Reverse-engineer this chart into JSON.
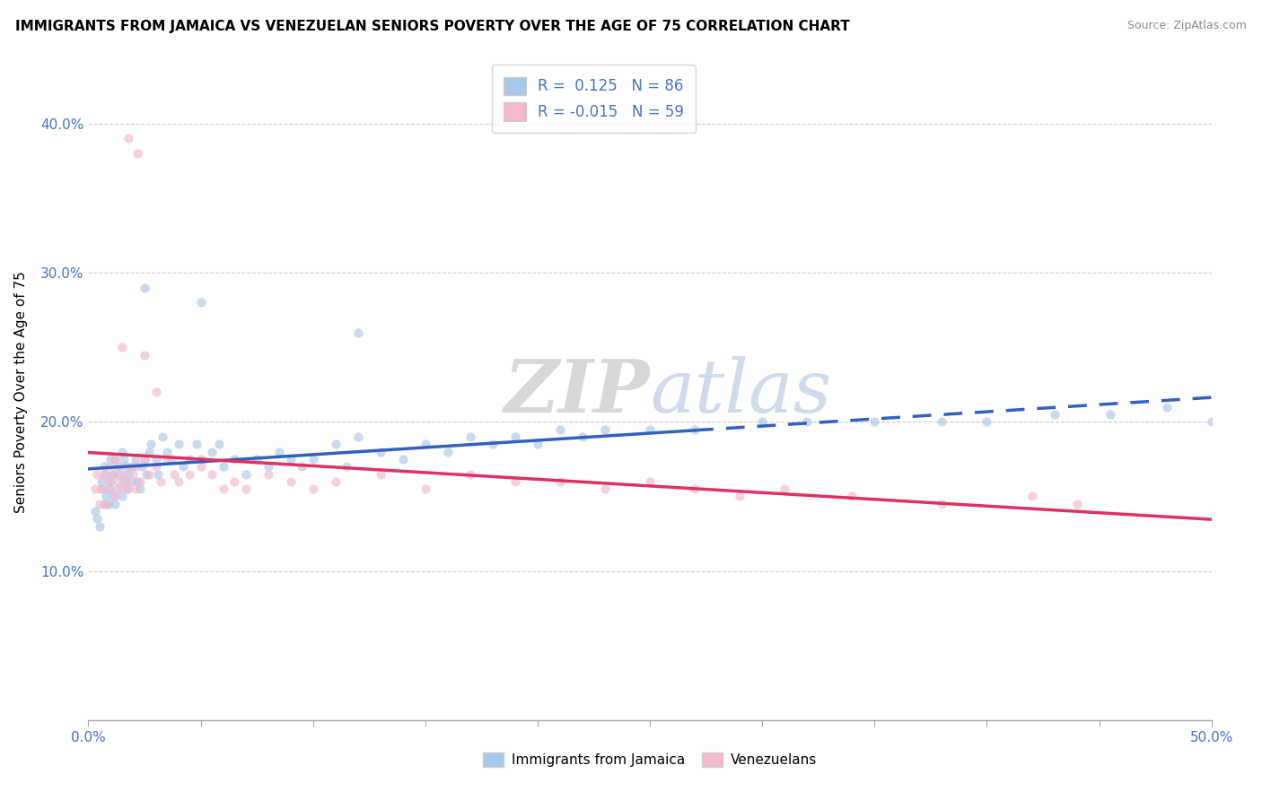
{
  "title": "IMMIGRANTS FROM JAMAICA VS VENEZUELAN SENIORS POVERTY OVER THE AGE OF 75 CORRELATION CHART",
  "source": "Source: ZipAtlas.com",
  "ylabel": "Seniors Poverty Over the Age of 75",
  "xlim": [
    0.0,
    0.5
  ],
  "ylim": [
    0.0,
    0.44
  ],
  "xtick_positions": [
    0.0,
    0.05,
    0.1,
    0.15,
    0.2,
    0.25,
    0.3,
    0.35,
    0.4,
    0.45,
    0.5
  ],
  "xticklabels": [
    "0.0%",
    "",
    "",
    "",
    "",
    "",
    "",
    "",
    "",
    "",
    "50.0%"
  ],
  "ytick_positions": [
    0.0,
    0.1,
    0.2,
    0.3,
    0.4
  ],
  "yticklabels": [
    "",
    "10.0%",
    "20.0%",
    "30.0%",
    "40.0%"
  ],
  "r_jamaica": 0.125,
  "n_jamaica": 86,
  "r_venezuela": -0.015,
  "n_venezuela": 59,
  "color_jamaica": "#a8c8e8",
  "color_venezuela": "#f5b8cc",
  "line_color_jamaica": "#3060c0",
  "line_color_venezuela": "#e03060",
  "watermark_zip": "ZIP",
  "watermark_atlas": "atlas",
  "jamaica_x": [
    0.003,
    0.004,
    0.005,
    0.006,
    0.006,
    0.007,
    0.007,
    0.008,
    0.008,
    0.009,
    0.009,
    0.01,
    0.01,
    0.011,
    0.011,
    0.012,
    0.012,
    0.013,
    0.013,
    0.014,
    0.015,
    0.015,
    0.016,
    0.016,
    0.017,
    0.017,
    0.018,
    0.019,
    0.02,
    0.021,
    0.022,
    0.023,
    0.024,
    0.025,
    0.026,
    0.027,
    0.028,
    0.03,
    0.031,
    0.033,
    0.035,
    0.037,
    0.04,
    0.042,
    0.045,
    0.048,
    0.05,
    0.055,
    0.058,
    0.06,
    0.065,
    0.07,
    0.075,
    0.08,
    0.085,
    0.09,
    0.095,
    0.1,
    0.11,
    0.115,
    0.12,
    0.13,
    0.14,
    0.15,
    0.16,
    0.17,
    0.18,
    0.19,
    0.2,
    0.21,
    0.22,
    0.23,
    0.25,
    0.27,
    0.3,
    0.32,
    0.35,
    0.38,
    0.4,
    0.43,
    0.455,
    0.48,
    0.5,
    0.025,
    0.05,
    0.12
  ],
  "jamaica_y": [
    0.14,
    0.135,
    0.13,
    0.155,
    0.16,
    0.145,
    0.17,
    0.15,
    0.165,
    0.145,
    0.155,
    0.16,
    0.175,
    0.15,
    0.165,
    0.145,
    0.175,
    0.155,
    0.17,
    0.165,
    0.15,
    0.18,
    0.16,
    0.175,
    0.155,
    0.17,
    0.165,
    0.16,
    0.17,
    0.175,
    0.16,
    0.155,
    0.17,
    0.175,
    0.165,
    0.18,
    0.185,
    0.175,
    0.165,
    0.19,
    0.18,
    0.175,
    0.185,
    0.17,
    0.175,
    0.185,
    0.175,
    0.18,
    0.185,
    0.17,
    0.175,
    0.165,
    0.175,
    0.17,
    0.18,
    0.175,
    0.17,
    0.175,
    0.185,
    0.17,
    0.19,
    0.18,
    0.175,
    0.185,
    0.18,
    0.19,
    0.185,
    0.19,
    0.185,
    0.195,
    0.19,
    0.195,
    0.195,
    0.195,
    0.2,
    0.2,
    0.2,
    0.2,
    0.2,
    0.205,
    0.205,
    0.21,
    0.2,
    0.29,
    0.28,
    0.26
  ],
  "venezuela_x": [
    0.003,
    0.004,
    0.005,
    0.006,
    0.007,
    0.008,
    0.009,
    0.01,
    0.01,
    0.011,
    0.012,
    0.012,
    0.013,
    0.014,
    0.015,
    0.016,
    0.017,
    0.018,
    0.019,
    0.02,
    0.021,
    0.022,
    0.023,
    0.025,
    0.027,
    0.03,
    0.032,
    0.035,
    0.038,
    0.04,
    0.045,
    0.05,
    0.055,
    0.06,
    0.065,
    0.07,
    0.08,
    0.09,
    0.1,
    0.11,
    0.13,
    0.15,
    0.17,
    0.19,
    0.21,
    0.23,
    0.25,
    0.27,
    0.29,
    0.31,
    0.34,
    0.38,
    0.42,
    0.44,
    0.015,
    0.025,
    0.03,
    0.018,
    0.022
  ],
  "venezuela_y": [
    0.155,
    0.165,
    0.145,
    0.155,
    0.165,
    0.145,
    0.16,
    0.155,
    0.17,
    0.165,
    0.15,
    0.175,
    0.16,
    0.17,
    0.155,
    0.165,
    0.16,
    0.155,
    0.17,
    0.165,
    0.155,
    0.17,
    0.16,
    0.175,
    0.165,
    0.17,
    0.16,
    0.175,
    0.165,
    0.16,
    0.165,
    0.17,
    0.165,
    0.155,
    0.16,
    0.155,
    0.165,
    0.16,
    0.155,
    0.16,
    0.165,
    0.155,
    0.165,
    0.16,
    0.16,
    0.155,
    0.16,
    0.155,
    0.15,
    0.155,
    0.15,
    0.145,
    0.15,
    0.145,
    0.25,
    0.245,
    0.22,
    0.39,
    0.38
  ],
  "dot_size": 55,
  "dot_alpha": 0.65,
  "jamaica_line_solid_end": 0.27,
  "jamaica_line_dash_start": 0.27
}
